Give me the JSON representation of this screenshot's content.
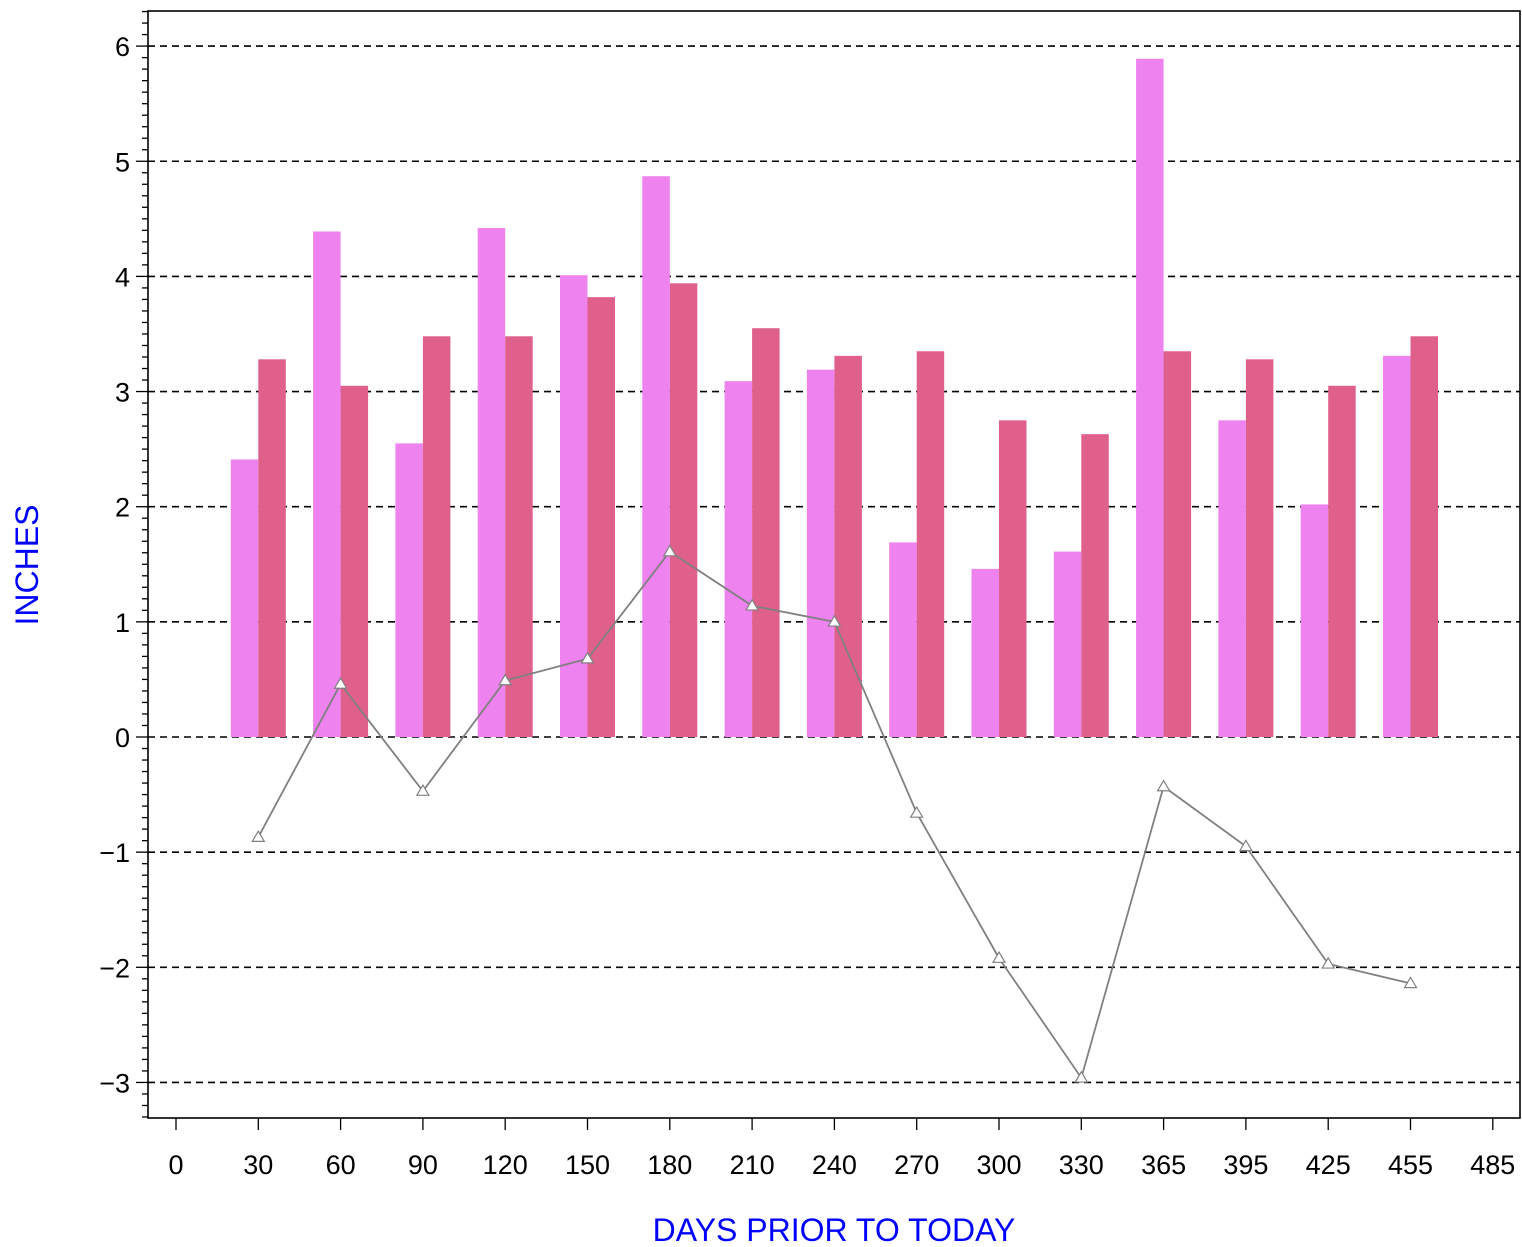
{
  "chart_data": {
    "type": "bar",
    "xlabel": "DAYS PRIOR TO TODAY",
    "ylabel": "INCHES",
    "x_ticks": [
      "0",
      "30",
      "60",
      "90",
      "120",
      "150",
      "180",
      "210",
      "240",
      "270",
      "300",
      "330",
      "365",
      "395",
      "425",
      "455",
      "485"
    ],
    "y_ticks": [
      "6",
      "5",
      "4",
      "3",
      "2",
      "1",
      "0",
      "−1",
      "−2",
      "−3"
    ],
    "ylim": [
      -3.3,
      6.3
    ],
    "grid": "horizontal dashed",
    "categories": [
      "30",
      "60",
      "90",
      "120",
      "150",
      "180",
      "210",
      "240",
      "270",
      "300",
      "330",
      "365",
      "395",
      "425",
      "455"
    ],
    "series": [
      {
        "type": "bar",
        "color": "#ee82ee",
        "values": [
          2.41,
          4.39,
          2.55,
          4.42,
          4.01,
          4.87,
          3.09,
          3.19,
          1.69,
          1.46,
          1.61,
          5.89,
          2.75,
          2.02,
          3.31
        ]
      },
      {
        "type": "bar",
        "color": "#e0608c",
        "values": [
          3.28,
          3.05,
          3.48,
          3.48,
          3.82,
          3.94,
          3.55,
          3.31,
          3.35,
          2.75,
          2.63,
          3.35,
          3.28,
          3.05,
          3.48
        ]
      },
      {
        "type": "line",
        "color": "#808080",
        "marker": "triangle",
        "values": [
          -0.87,
          0.46,
          -0.47,
          0.49,
          0.68,
          1.61,
          1.14,
          1.0,
          -0.66,
          -1.92,
          -2.96,
          -0.43,
          -0.95,
          -1.97,
          -2.14
        ]
      }
    ],
    "title_color": "#0000ff"
  }
}
